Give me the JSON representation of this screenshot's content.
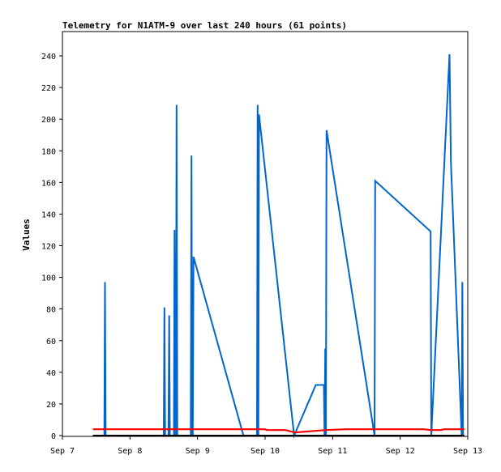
{
  "chart_data": {
    "type": "line",
    "title": "Telemetry for N1ATM-9 over last 240 hours (61 points)",
    "xlabel": "",
    "ylabel": "Values",
    "x_ticks": [
      "Sep 7",
      "Sep 8",
      "Sep 9",
      "Sep 10",
      "Sep 11",
      "Sep 12",
      "Sep 13"
    ],
    "y_ticks": [
      "0",
      "20",
      "40",
      "60",
      "80",
      "100",
      "120",
      "140",
      "160",
      "180",
      "200",
      "220",
      "240"
    ],
    "xlim_days": [
      7.0,
      13.0
    ],
    "ylim": [
      0,
      255
    ],
    "grid": false,
    "legend": "none",
    "x_unit": "day of September",
    "series": [
      {
        "color": "#0066cc",
        "points": [
          [
            7.62,
            0
          ],
          [
            7.63,
            97
          ],
          [
            7.64,
            0
          ],
          [
            8.5,
            0
          ],
          [
            8.51,
            81
          ],
          [
            8.52,
            0
          ],
          [
            8.57,
            0
          ],
          [
            8.58,
            76
          ],
          [
            8.59,
            0
          ],
          [
            8.65,
            0
          ],
          [
            8.66,
            130
          ],
          [
            8.67,
            0
          ],
          [
            8.68,
            0
          ],
          [
            8.69,
            209
          ],
          [
            8.7,
            0
          ],
          [
            8.9,
            0
          ],
          [
            8.91,
            177
          ],
          [
            8.92,
            0
          ],
          [
            8.93,
            0
          ],
          [
            8.94,
            113
          ],
          [
            9.68,
            0
          ],
          [
            9.88,
            0
          ],
          [
            9.89,
            209
          ],
          [
            9.9,
            0
          ],
          [
            9.91,
            203
          ],
          [
            10.43,
            0
          ],
          [
            10.75,
            32
          ],
          [
            10.87,
            32
          ],
          [
            10.88,
            0
          ],
          [
            10.89,
            55
          ],
          [
            10.9,
            0
          ],
          [
            10.91,
            193
          ],
          [
            11.62,
            0
          ],
          [
            11.63,
            161
          ],
          [
            12.45,
            129
          ],
          [
            12.46,
            0
          ],
          [
            12.73,
            241
          ],
          [
            12.75,
            173
          ],
          [
            12.91,
            0
          ],
          [
            12.92,
            97
          ],
          [
            12.93,
            0
          ]
        ]
      },
      {
        "color": "#ff0000",
        "points": [
          [
            7.45,
            4
          ],
          [
            10.0,
            4
          ],
          [
            10.02,
            3.5
          ],
          [
            10.3,
            3.5
          ],
          [
            10.44,
            2
          ],
          [
            10.9,
            3.5
          ],
          [
            11.2,
            4
          ],
          [
            12.35,
            4
          ],
          [
            12.45,
            3.5
          ],
          [
            12.6,
            3.5
          ],
          [
            12.65,
            4
          ],
          [
            12.95,
            4
          ]
        ]
      },
      {
        "color": "#000000",
        "points": [
          [
            7.45,
            0
          ],
          [
            12.95,
            0
          ]
        ]
      }
    ]
  }
}
